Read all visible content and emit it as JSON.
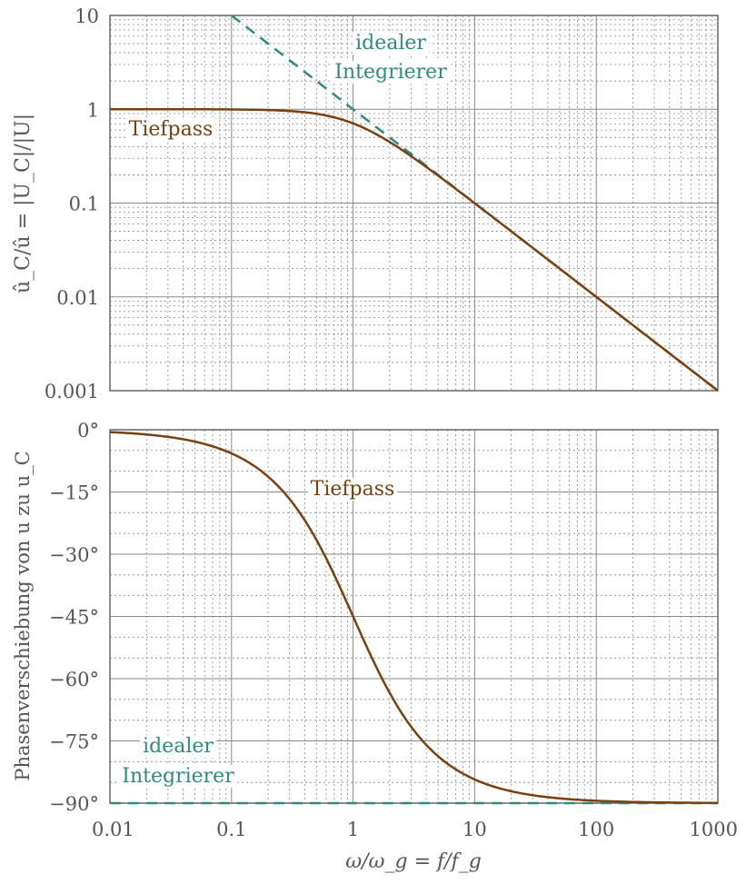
{
  "chart_data": [
    {
      "type": "line",
      "title": "",
      "xlabel": "ω/ω_g = f/f_g",
      "ylabel": "û_C/û = |U_C|/|U|",
      "xscale": "log",
      "yscale": "log",
      "xlim": [
        0.01,
        1000
      ],
      "ylim": [
        0.001,
        10
      ],
      "xticks": [
        "0.01",
        "0.1",
        "1",
        "10",
        "100",
        "1000"
      ],
      "yticks": [
        "0.001",
        "0.01",
        "0.1",
        "1",
        "10"
      ],
      "grid": true,
      "series": [
        {
          "name": "Tiefpass",
          "formula": "1/sqrt(1+x^2)",
          "color": "#7a4010",
          "style": "solid"
        },
        {
          "name": "idealer Integrierer",
          "formula": "1/x",
          "color": "#2e8b7d",
          "style": "dashed"
        }
      ],
      "annotations": [
        {
          "text": "Tiefpass"
        },
        {
          "text": "idealer"
        },
        {
          "text": "Integrierer"
        }
      ]
    },
    {
      "type": "line",
      "xlabel": "ω/ω_g = f/f_g",
      "ylabel": "Phasenverschiebung von u zu u_C",
      "xscale": "log",
      "xlim": [
        0.01,
        1000
      ],
      "ylim": [
        -90,
        0
      ],
      "xticks": [
        "0.01",
        "0.1",
        "1",
        "10",
        "100",
        "1000"
      ],
      "yticks": [
        "0°",
        "−15°",
        "−30°",
        "−45°",
        "−60°",
        "−75°",
        "−90°"
      ],
      "grid": true,
      "series": [
        {
          "name": "Tiefpass",
          "formula": "-atan(x) in degrees",
          "color": "#7a4010",
          "style": "solid"
        },
        {
          "name": "idealer Integrierer",
          "value": -90,
          "color": "#2e8b7d",
          "style": "dashed"
        }
      ],
      "annotations": [
        {
          "text": "Tiefpass"
        },
        {
          "text": "idealer"
        },
        {
          "text": "Integrierer"
        }
      ]
    }
  ]
}
